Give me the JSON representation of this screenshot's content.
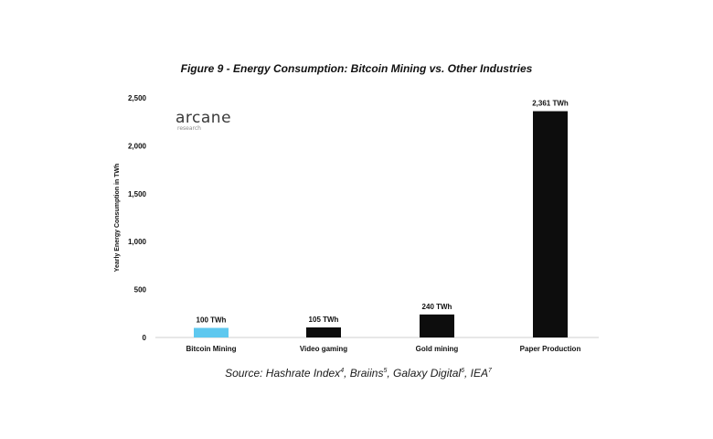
{
  "chart_data": {
    "type": "bar",
    "title": "Figure 9 - Energy Consumption: Bitcoin Mining vs. Other Industries",
    "ylabel": "Yearly Energy Consumption in TWh",
    "xlabel": "",
    "categories": [
      "Bitcoin Mining",
      "Video gaming",
      "Gold mining",
      "Paper Production"
    ],
    "values": [
      100,
      105,
      240,
      2361
    ],
    "data_labels": [
      "100 TWh",
      "105 TWh",
      "240 TWh",
      "2,361 TWh"
    ],
    "bar_colors": [
      "#5ec8ef",
      "#0d0d0d",
      "#0d0d0d",
      "#0d0d0d"
    ],
    "ylim": [
      0,
      2500
    ],
    "yticks": [
      0,
      500,
      1000,
      1500,
      2000,
      2500
    ],
    "ytick_labels": [
      "0",
      "500",
      "1,000",
      "1,500",
      "2,000",
      "2,500"
    ],
    "grid": false,
    "legend": "none"
  },
  "logo": {
    "name": "arcane",
    "sub": "research"
  },
  "source": {
    "prefix": "Source: Hashrate Index",
    "ref1": "4",
    "sep1": ", Braiins",
    "ref2": "5",
    "sep2": ", Galaxy Digital",
    "ref3": "6",
    "sep3": ", IEA",
    "ref4": "7"
  }
}
